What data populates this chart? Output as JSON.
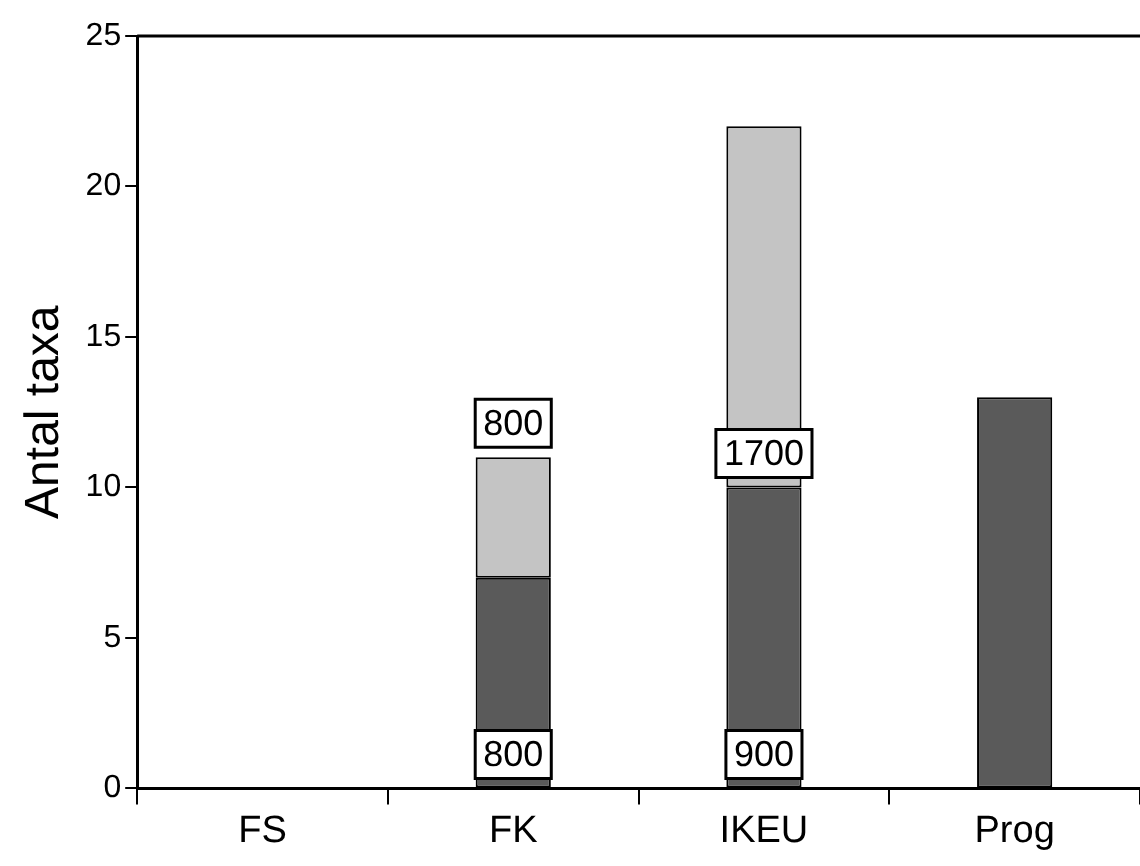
{
  "chart_data": {
    "type": "bar",
    "stacked": true,
    "ylabel": "Antal taxa",
    "categories": [
      "FS",
      "FK",
      "IKEU",
      "Prog"
    ],
    "series": [
      {
        "color": "#5a5a5a",
        "values": [
          0,
          7,
          10,
          13
        ]
      },
      {
        "color": "#c4c4c4",
        "values": [
          0,
          4,
          12,
          0
        ]
      }
    ],
    "ylim": [
      0,
      25
    ],
    "yticks": [
      0,
      5,
      10,
      15,
      20,
      25
    ],
    "grid": false,
    "legend": false,
    "annotations": [
      {
        "text": "800",
        "x": "FK",
        "y": 11
      },
      {
        "text": "800",
        "x": "FK",
        "y": 0
      },
      {
        "text": "1700",
        "x": "IKEU",
        "y": 10
      },
      {
        "text": "900",
        "x": "IKEU",
        "y": 0
      }
    ]
  }
}
